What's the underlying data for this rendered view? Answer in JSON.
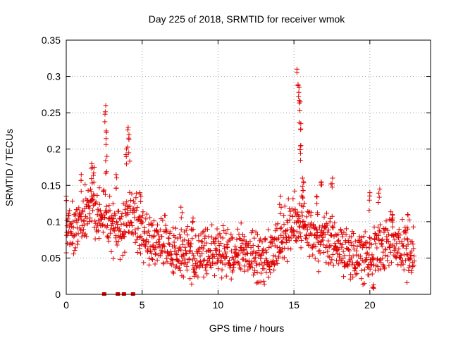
{
  "chart_data": {
    "type": "scatter",
    "title": "Day 225 of 2018, SRMTID for receiver wmok",
    "xlabel": "GPS time / hours",
    "ylabel": "SRMTID / TECUs",
    "xlim": [
      0,
      24
    ],
    "ylim": [
      0,
      0.35
    ],
    "x_ticks": [
      0,
      5,
      10,
      15,
      20
    ],
    "x_tick_labels": [
      "0",
      "5",
      "10",
      "15",
      "20"
    ],
    "y_ticks": [
      0,
      0.05,
      0.1,
      0.15,
      0.2,
      0.25,
      0.3,
      0.35
    ],
    "y_tick_labels": [
      "0",
      "0.05",
      "0.1",
      "0.15",
      "0.2",
      "0.25",
      "0.3",
      "0.35"
    ],
    "grid": true,
    "marker": "plus",
    "color": "#e00000",
    "data_gaps_at_zero": [
      2.5,
      3.4,
      3.8,
      4.4
    ],
    "series": [
      {
        "name": "SRMTID",
        "trend": [
          [
            0.0,
            0.095
          ],
          [
            0.5,
            0.09
          ],
          [
            1.0,
            0.1
          ],
          [
            1.5,
            0.12
          ],
          [
            2.0,
            0.11
          ],
          [
            2.5,
            0.115
          ],
          [
            3.0,
            0.09
          ],
          [
            3.5,
            0.08
          ],
          [
            4.0,
            0.11
          ],
          [
            4.5,
            0.105
          ],
          [
            5.0,
            0.085
          ],
          [
            5.5,
            0.08
          ],
          [
            6.0,
            0.075
          ],
          [
            6.5,
            0.07
          ],
          [
            7.0,
            0.065
          ],
          [
            7.5,
            0.058
          ],
          [
            8.0,
            0.055
          ],
          [
            8.5,
            0.05
          ],
          [
            9.0,
            0.052
          ],
          [
            9.5,
            0.058
          ],
          [
            10.0,
            0.06
          ],
          [
            10.5,
            0.058
          ],
          [
            11.0,
            0.055
          ],
          [
            11.5,
            0.06
          ],
          [
            12.0,
            0.058
          ],
          [
            12.5,
            0.05
          ],
          [
            13.0,
            0.048
          ],
          [
            13.5,
            0.052
          ],
          [
            14.0,
            0.065
          ],
          [
            14.5,
            0.085
          ],
          [
            15.0,
            0.1
          ],
          [
            15.5,
            0.1
          ],
          [
            16.0,
            0.085
          ],
          [
            16.5,
            0.075
          ],
          [
            17.0,
            0.075
          ],
          [
            17.5,
            0.07
          ],
          [
            18.0,
            0.065
          ],
          [
            18.5,
            0.055
          ],
          [
            19.0,
            0.05
          ],
          [
            19.5,
            0.048
          ],
          [
            20.0,
            0.05
          ],
          [
            20.5,
            0.065
          ],
          [
            21.0,
            0.07
          ],
          [
            21.5,
            0.075
          ],
          [
            22.0,
            0.065
          ],
          [
            22.5,
            0.06
          ],
          [
            22.9,
            0.06
          ]
        ],
        "spread": 0.03,
        "peaks": [
          [
            0.05,
            0.135
          ],
          [
            0.95,
            0.165
          ],
          [
            1.65,
            0.18
          ],
          [
            1.8,
            0.175
          ],
          [
            2.55,
            0.26
          ],
          [
            2.6,
            0.225
          ],
          [
            2.65,
            0.19
          ],
          [
            3.3,
            0.165
          ],
          [
            3.95,
            0.2
          ],
          [
            4.1,
            0.23
          ],
          [
            4.15,
            0.215
          ],
          [
            4.9,
            0.14
          ],
          [
            7.6,
            0.12
          ],
          [
            8.3,
            0.105
          ],
          [
            14.1,
            0.135
          ],
          [
            15.25,
            0.31
          ],
          [
            15.3,
            0.285
          ],
          [
            15.35,
            0.265
          ],
          [
            15.4,
            0.235
          ],
          [
            15.45,
            0.205
          ],
          [
            15.55,
            0.16
          ],
          [
            15.6,
            0.155
          ],
          [
            16.5,
            0.135
          ],
          [
            16.8,
            0.155
          ],
          [
            17.5,
            0.16
          ],
          [
            20.0,
            0.14
          ],
          [
            20.2,
            0.013
          ],
          [
            20.6,
            0.145
          ],
          [
            21.5,
            0.11
          ],
          [
            22.5,
            0.11
          ]
        ]
      }
    ]
  }
}
